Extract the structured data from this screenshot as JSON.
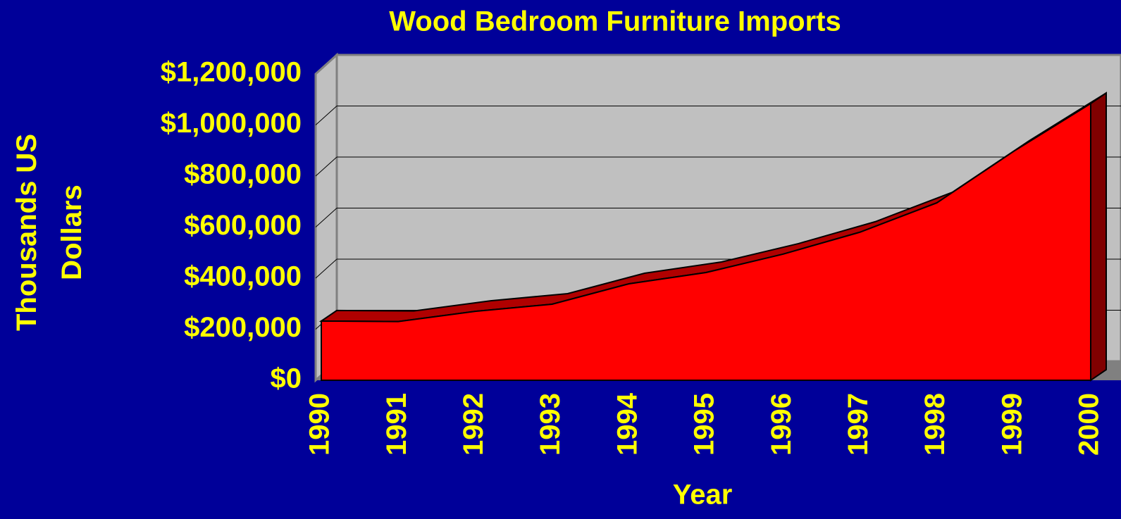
{
  "chart_data": {
    "type": "area",
    "title": "Wood Bedroom Furniture Imports",
    "x_label": "Year",
    "y_label": "Thousands US Dollars",
    "categories": [
      "1990",
      "1991",
      "1992",
      "1993",
      "1994",
      "1995",
      "1996",
      "1997",
      "1998",
      "1999",
      "2000"
    ],
    "values": [
      232000,
      230000,
      270000,
      298000,
      378000,
      422000,
      494000,
      580000,
      695000,
      897000,
      1084000
    ],
    "color": "#ff0000",
    "ylim": [
      0,
      1200000
    ],
    "yticks": [
      {
        "value": 0,
        "label": "$0"
      },
      {
        "value": 200000,
        "label": "$200,000"
      },
      {
        "value": 400000,
        "label": "$400,000"
      },
      {
        "value": 600000,
        "label": "$600,000"
      },
      {
        "value": 800000,
        "label": "$800,000"
      },
      {
        "value": 1000000,
        "label": "$1,000,000"
      },
      {
        "value": 1200000,
        "label": "$1,200,000"
      }
    ],
    "grid": true
  }
}
